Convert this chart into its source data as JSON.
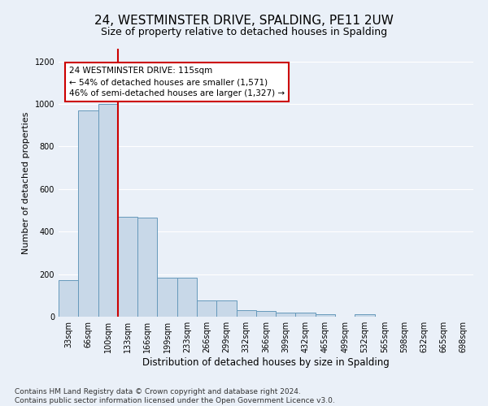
{
  "title": "24, WESTMINSTER DRIVE, SPALDING, PE11 2UW",
  "subtitle": "Size of property relative to detached houses in Spalding",
  "xlabel": "Distribution of detached houses by size in Spalding",
  "ylabel": "Number of detached properties",
  "categories": [
    "33sqm",
    "66sqm",
    "100sqm",
    "133sqm",
    "166sqm",
    "199sqm",
    "233sqm",
    "266sqm",
    "299sqm",
    "332sqm",
    "366sqm",
    "399sqm",
    "432sqm",
    "465sqm",
    "499sqm",
    "532sqm",
    "565sqm",
    "598sqm",
    "632sqm",
    "665sqm",
    "698sqm"
  ],
  "values": [
    170,
    970,
    1000,
    470,
    465,
    185,
    185,
    75,
    75,
    30,
    25,
    20,
    20,
    12,
    0,
    12,
    0,
    0,
    0,
    0,
    0
  ],
  "bar_color": "#c8d8e8",
  "bar_edge_color": "#6699bb",
  "red_line_x": 2.5,
  "annotation_text": "24 WESTMINSTER DRIVE: 115sqm\n← 54% of detached houses are smaller (1,571)\n46% of semi-detached houses are larger (1,327) →",
  "annotation_box_color": "#ffffff",
  "annotation_box_edge_color": "#cc0000",
  "ylim": [
    0,
    1260
  ],
  "yticks": [
    0,
    200,
    400,
    600,
    800,
    1000,
    1200
  ],
  "footer_text": "Contains HM Land Registry data © Crown copyright and database right 2024.\nContains public sector information licensed under the Open Government Licence v3.0.",
  "background_color": "#eaf0f8",
  "grid_color": "#ffffff",
  "title_fontsize": 11,
  "subtitle_fontsize": 9,
  "xlabel_fontsize": 8.5,
  "ylabel_fontsize": 8,
  "tick_fontsize": 7,
  "annotation_fontsize": 7.5,
  "footer_fontsize": 6.5
}
